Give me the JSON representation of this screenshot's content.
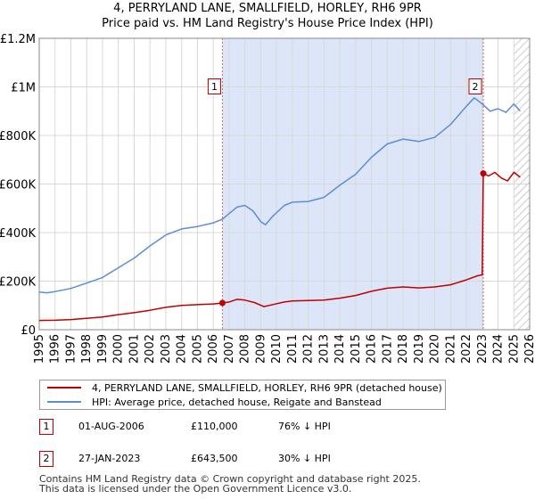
{
  "title_line1": "4, PERRYLAND LANE, SMALLFIELD, HORLEY, RH6 9PR",
  "title_line2": "Price paid vs. HM Land Registry's House Price Index (HPI)",
  "chart_data": {
    "type": "line",
    "title": "4, PERRYLAND LANE, SMALLFIELD, HORLEY, RH6 9PR — Price paid vs. HM Land Registry's House Price Index (HPI)",
    "xlim": [
      1995,
      2026
    ],
    "ylim": [
      0,
      1200000
    ],
    "x_ticks": [
      1995,
      1996,
      1997,
      1998,
      1999,
      2000,
      2001,
      2002,
      2003,
      2004,
      2005,
      2006,
      2007,
      2008,
      2009,
      2010,
      2011,
      2012,
      2013,
      2014,
      2015,
      2016,
      2017,
      2018,
      2019,
      2020,
      2021,
      2022,
      2023,
      2024,
      2025,
      2026
    ],
    "y_ticks": [
      {
        "value": 0,
        "label": "£0"
      },
      {
        "value": 200000,
        "label": "£200K"
      },
      {
        "value": 400000,
        "label": "£400K"
      },
      {
        "value": 600000,
        "label": "£600K"
      },
      {
        "value": 800000,
        "label": "£800K"
      },
      {
        "value": 1000000,
        "label": "£1M"
      },
      {
        "value": 1200000,
        "label": "£1.2M"
      }
    ],
    "shaded_region": {
      "from": 2006.58,
      "to": 2023.07,
      "color": "#dde6f8"
    },
    "hatched_region": {
      "from": 2025.0,
      "to": 2026.0
    },
    "series": [
      {
        "name": "4, PERRYLAND LANE, SMALLFIELD, HORLEY, RH6 9PR (detached house)",
        "color": "#c00000",
        "points": [
          [
            1995.0,
            38000
          ],
          [
            1996.0,
            39000
          ],
          [
            1997.0,
            42000
          ],
          [
            1998.0,
            47000
          ],
          [
            1999.0,
            52000
          ],
          [
            2000.0,
            62000
          ],
          [
            2001.0,
            70000
          ],
          [
            2002.0,
            80000
          ],
          [
            2003.0,
            92000
          ],
          [
            2004.0,
            100000
          ],
          [
            2005.0,
            103000
          ],
          [
            2006.0,
            106000
          ],
          [
            2006.58,
            110000
          ],
          [
            2007.0,
            114000
          ],
          [
            2007.5,
            125000
          ],
          [
            2008.0,
            122000
          ],
          [
            2008.6,
            112000
          ],
          [
            2009.2,
            95000
          ],
          [
            2009.8,
            104000
          ],
          [
            2010.5,
            114000
          ],
          [
            2011.0,
            118000
          ],
          [
            2012.0,
            120000
          ],
          [
            2013.0,
            122000
          ],
          [
            2014.0,
            130000
          ],
          [
            2015.0,
            141000
          ],
          [
            2016.0,
            158000
          ],
          [
            2017.0,
            171000
          ],
          [
            2018.0,
            176000
          ],
          [
            2019.0,
            172000
          ],
          [
            2020.0,
            176000
          ],
          [
            2021.0,
            185000
          ],
          [
            2022.0,
            205000
          ],
          [
            2022.7,
            222000
          ],
          [
            2023.0,
            226000
          ],
          [
            2023.07,
            643500
          ],
          [
            2023.4,
            633000
          ],
          [
            2023.8,
            648000
          ],
          [
            2024.2,
            625000
          ],
          [
            2024.6,
            613000
          ],
          [
            2025.0,
            648000
          ],
          [
            2025.4,
            628000
          ]
        ]
      },
      {
        "name": "HPI: Average price, detached house, Reigate and Banstead",
        "color": "#5b8ed6",
        "points": [
          [
            1995.0,
            155000
          ],
          [
            1995.5,
            152000
          ],
          [
            1996.0,
            157000
          ],
          [
            1997.0,
            170000
          ],
          [
            1998.0,
            192000
          ],
          [
            1999.0,
            215000
          ],
          [
            2000.0,
            255000
          ],
          [
            2001.0,
            295000
          ],
          [
            2002.0,
            345000
          ],
          [
            2003.0,
            390000
          ],
          [
            2004.0,
            415000
          ],
          [
            2005.0,
            425000
          ],
          [
            2006.0,
            440000
          ],
          [
            2006.58,
            455000
          ],
          [
            2007.0,
            478000
          ],
          [
            2007.5,
            505000
          ],
          [
            2008.0,
            512000
          ],
          [
            2008.5,
            490000
          ],
          [
            2009.0,
            445000
          ],
          [
            2009.3,
            432000
          ],
          [
            2009.8,
            470000
          ],
          [
            2010.5,
            512000
          ],
          [
            2011.0,
            525000
          ],
          [
            2012.0,
            528000
          ],
          [
            2013.0,
            545000
          ],
          [
            2014.0,
            595000
          ],
          [
            2015.0,
            640000
          ],
          [
            2016.0,
            710000
          ],
          [
            2017.0,
            765000
          ],
          [
            2018.0,
            785000
          ],
          [
            2019.0,
            775000
          ],
          [
            2020.0,
            792000
          ],
          [
            2021.0,
            845000
          ],
          [
            2022.0,
            920000
          ],
          [
            2022.5,
            955000
          ],
          [
            2023.0,
            930000
          ],
          [
            2023.5,
            900000
          ],
          [
            2024.0,
            910000
          ],
          [
            2024.5,
            895000
          ],
          [
            2025.0,
            930000
          ],
          [
            2025.4,
            900000
          ]
        ]
      }
    ],
    "markers": [
      {
        "label": "1",
        "x": 2006.58,
        "y": 110000,
        "box_y": 1000000
      },
      {
        "label": "2",
        "x": 2023.07,
        "y": 643500,
        "box_y": 1000000
      }
    ]
  },
  "legend": [
    {
      "label": "4, PERRYLAND LANE, SMALLFIELD, HORLEY, RH6 9PR (detached house)",
      "color": "#c00000"
    },
    {
      "label": "HPI: Average price, detached house, Reigate and Banstead",
      "color": "#5b8ed6"
    }
  ],
  "transactions": [
    {
      "num": "1",
      "date": "01-AUG-2006",
      "price": "£110,000",
      "hpi": "76% ↓ HPI"
    },
    {
      "num": "2",
      "date": "27-JAN-2023",
      "price": "£643,500",
      "hpi": "30% ↓ HPI"
    }
  ],
  "footer_line1": "Contains HM Land Registry data © Crown copyright and database right 2025.",
  "footer_line2": "This data is licensed under the Open Government Licence v3.0."
}
